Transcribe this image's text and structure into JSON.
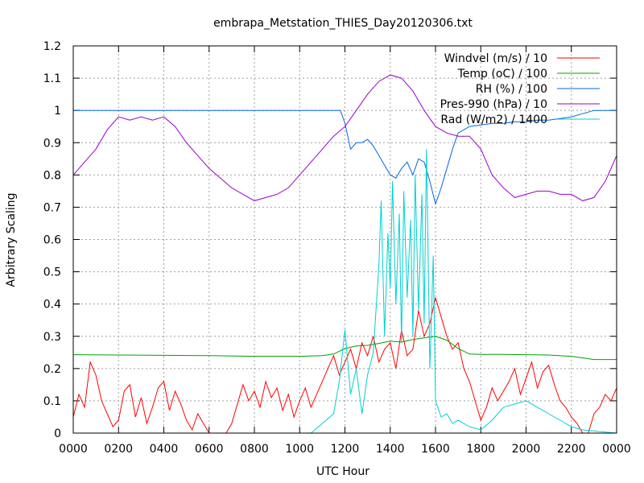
{
  "chart_data": {
    "type": "line",
    "title": "embrapa_Metstation_THIES_Day20120306.txt",
    "xlabel": "UTC Hour",
    "ylabel": "Arbitrary Scaling",
    "xlim": [
      0,
      24
    ],
    "ylim": [
      0,
      1.2
    ],
    "xticks": [
      {
        "v": 0,
        "label": "0000"
      },
      {
        "v": 2,
        "label": "0200"
      },
      {
        "v": 4,
        "label": "0400"
      },
      {
        "v": 6,
        "label": "0600"
      },
      {
        "v": 8,
        "label": "0800"
      },
      {
        "v": 10,
        "label": "1000"
      },
      {
        "v": 12,
        "label": "1200"
      },
      {
        "v": 14,
        "label": "1400"
      },
      {
        "v": 16,
        "label": "1600"
      },
      {
        "v": 18,
        "label": "1800"
      },
      {
        "v": 20,
        "label": "2000"
      },
      {
        "v": 22,
        "label": "2200"
      },
      {
        "v": 24,
        "label": "0000"
      }
    ],
    "yticks": [
      {
        "v": 0,
        "label": "0"
      },
      {
        "v": 0.1,
        "label": "0.1"
      },
      {
        "v": 0.2,
        "label": "0.2"
      },
      {
        "v": 0.3,
        "label": "0.3"
      },
      {
        "v": 0.4,
        "label": "0.4"
      },
      {
        "v": 0.5,
        "label": "0.5"
      },
      {
        "v": 0.6,
        "label": "0.6"
      },
      {
        "v": 0.7,
        "label": "0.7"
      },
      {
        "v": 0.8,
        "label": "0.8"
      },
      {
        "v": 0.9,
        "label": "0.9"
      },
      {
        "v": 1.0,
        "label": "1"
      },
      {
        "v": 1.1,
        "label": "1.1"
      },
      {
        "v": 1.2,
        "label": "1.2"
      }
    ],
    "grid": true,
    "legend_position": "top-right",
    "series": [
      {
        "name": "Windvel (m/s) / 10",
        "color": "#ff0000",
        "x": [
          0,
          0.25,
          0.5,
          0.75,
          1,
          1.25,
          1.5,
          1.75,
          2,
          2.25,
          2.5,
          2.75,
          3,
          3.25,
          3.5,
          3.75,
          4,
          4.25,
          4.5,
          4.75,
          5,
          5.25,
          5.5,
          5.75,
          6,
          6.25,
          6.5,
          6.75,
          7,
          7.25,
          7.5,
          7.75,
          8,
          8.25,
          8.5,
          8.75,
          9,
          9.25,
          9.5,
          9.75,
          10,
          10.25,
          10.5,
          10.75,
          11,
          11.25,
          11.5,
          11.75,
          12,
          12.25,
          12.5,
          12.75,
          13,
          13.25,
          13.5,
          13.75,
          14,
          14.25,
          14.5,
          14.75,
          15,
          15.25,
          15.5,
          15.75,
          16,
          16.25,
          16.5,
          16.75,
          17,
          17.25,
          17.5,
          17.75,
          18,
          18.25,
          18.5,
          18.75,
          19,
          19.25,
          19.5,
          19.75,
          20,
          20.25,
          20.5,
          20.75,
          21,
          21.25,
          21.5,
          21.75,
          22,
          22.25,
          22.5,
          22.75,
          23,
          23.25,
          23.5,
          23.75,
          24
        ],
        "values": [
          0.05,
          0.12,
          0.08,
          0.22,
          0.18,
          0.1,
          0.06,
          0.02,
          0.04,
          0.13,
          0.15,
          0.05,
          0.11,
          0.03,
          0.08,
          0.14,
          0.16,
          0.07,
          0.13,
          0.09,
          0.04,
          0.01,
          0.06,
          0.03,
          0,
          0,
          0,
          0,
          0.03,
          0.09,
          0.15,
          0.1,
          0.13,
          0.08,
          0.16,
          0.11,
          0.14,
          0.07,
          0.12,
          0.05,
          0.1,
          0.14,
          0.08,
          0.12,
          0.16,
          0.2,
          0.24,
          0.18,
          0.22,
          0.26,
          0.2,
          0.28,
          0.24,
          0.3,
          0.22,
          0.26,
          0.28,
          0.2,
          0.32,
          0.24,
          0.26,
          0.38,
          0.3,
          0.34,
          0.42,
          0.36,
          0.3,
          0.26,
          0.28,
          0.2,
          0.16,
          0.1,
          0.04,
          0.08,
          0.14,
          0.1,
          0.13,
          0.16,
          0.2,
          0.12,
          0.17,
          0.22,
          0.14,
          0.19,
          0.21,
          0.15,
          0.1,
          0.08,
          0.05,
          0.03,
          0,
          0,
          0.06,
          0.08,
          0.12,
          0.1,
          0.14
        ]
      },
      {
        "name": "Temp (oC) / 100",
        "color": "#00a000",
        "x": [
          0,
          2,
          4,
          6,
          8,
          10,
          11,
          11.5,
          12,
          12.5,
          13,
          13.5,
          14,
          14.5,
          15,
          15.5,
          16,
          16.5,
          17,
          17.5,
          18,
          19,
          20,
          21,
          22,
          23,
          24
        ],
        "values": [
          0.243,
          0.242,
          0.241,
          0.24,
          0.238,
          0.238,
          0.24,
          0.245,
          0.262,
          0.27,
          0.272,
          0.278,
          0.285,
          0.282,
          0.29,
          0.295,
          0.3,
          0.288,
          0.262,
          0.245,
          0.244,
          0.244,
          0.243,
          0.242,
          0.238,
          0.228,
          0.228
        ]
      },
      {
        "name": "RH (%) / 100",
        "color": "#0066e0",
        "x": [
          0,
          2,
          4,
          6,
          8,
          10,
          11,
          11.8,
          12,
          12.25,
          12.5,
          12.75,
          13,
          13.25,
          13.5,
          13.75,
          14,
          14.25,
          14.5,
          14.75,
          15,
          15.25,
          15.5,
          15.75,
          16,
          16.25,
          16.5,
          16.75,
          17,
          17.5,
          18,
          18.5,
          19,
          19.5,
          20,
          20.5,
          21,
          21.5,
          22,
          22.5,
          23,
          24
        ],
        "values": [
          1.0,
          1.0,
          1.0,
          1.0,
          1.0,
          1.0,
          1.0,
          1.0,
          0.96,
          0.88,
          0.9,
          0.9,
          0.91,
          0.89,
          0.86,
          0.83,
          0.8,
          0.79,
          0.82,
          0.84,
          0.8,
          0.85,
          0.84,
          0.78,
          0.71,
          0.76,
          0.82,
          0.88,
          0.93,
          0.95,
          0.955,
          0.96,
          0.96,
          0.965,
          0.965,
          0.97,
          0.97,
          0.975,
          0.98,
          0.99,
          1.0,
          1.0
        ]
      },
      {
        "name": "Pres-990 (hPa) / 10",
        "color": "#9900cc",
        "x": [
          0,
          0.5,
          1,
          1.5,
          2,
          2.5,
          3,
          3.5,
          4,
          4.5,
          5,
          5.5,
          6,
          6.5,
          7,
          7.5,
          8,
          8.5,
          9,
          9.5,
          10,
          10.5,
          11,
          11.5,
          12,
          12.5,
          13,
          13.5,
          14,
          14.5,
          15,
          15.5,
          16,
          16.5,
          17,
          17.5,
          18,
          18.5,
          19,
          19.5,
          20,
          20.5,
          21,
          21.5,
          22,
          22.5,
          23,
          23.5,
          24
        ],
        "values": [
          0.8,
          0.84,
          0.88,
          0.94,
          0.98,
          0.97,
          0.98,
          0.97,
          0.98,
          0.95,
          0.9,
          0.86,
          0.82,
          0.79,
          0.76,
          0.74,
          0.72,
          0.73,
          0.74,
          0.76,
          0.8,
          0.84,
          0.88,
          0.92,
          0.95,
          1.0,
          1.05,
          1.09,
          1.11,
          1.1,
          1.06,
          1.0,
          0.95,
          0.93,
          0.92,
          0.92,
          0.88,
          0.8,
          0.76,
          0.73,
          0.74,
          0.75,
          0.75,
          0.74,
          0.74,
          0.72,
          0.73,
          0.78,
          0.86
        ]
      },
      {
        "name": "Rad (W/m2) / 1400",
        "color": "#00d0d0",
        "x": [
          0,
          10.5,
          11,
          11.5,
          11.75,
          12,
          12.25,
          12.5,
          12.75,
          13,
          13.25,
          13.5,
          13.6,
          13.75,
          13.9,
          14,
          14.1,
          14.25,
          14.4,
          14.5,
          14.6,
          14.75,
          14.9,
          15,
          15.1,
          15.25,
          15.4,
          15.5,
          15.6,
          15.75,
          15.9,
          16,
          16.25,
          16.5,
          16.75,
          17,
          17.5,
          18,
          18.5,
          19,
          19.5,
          20,
          20.5,
          21,
          21.5,
          22,
          22.5,
          24
        ],
        "values": [
          0,
          0,
          0.03,
          0.06,
          0.16,
          0.32,
          0.12,
          0.2,
          0.06,
          0.18,
          0.25,
          0.52,
          0.72,
          0.3,
          0.62,
          0.45,
          0.78,
          0.4,
          0.68,
          0.28,
          0.75,
          0.42,
          0.66,
          0.3,
          0.8,
          0.38,
          0.74,
          0.34,
          0.88,
          0.2,
          0.55,
          0.1,
          0.05,
          0.06,
          0.03,
          0.04,
          0.02,
          0.01,
          0.04,
          0.08,
          0.09,
          0.1,
          0.08,
          0.06,
          0.04,
          0.02,
          0.01,
          0
        ]
      }
    ]
  }
}
